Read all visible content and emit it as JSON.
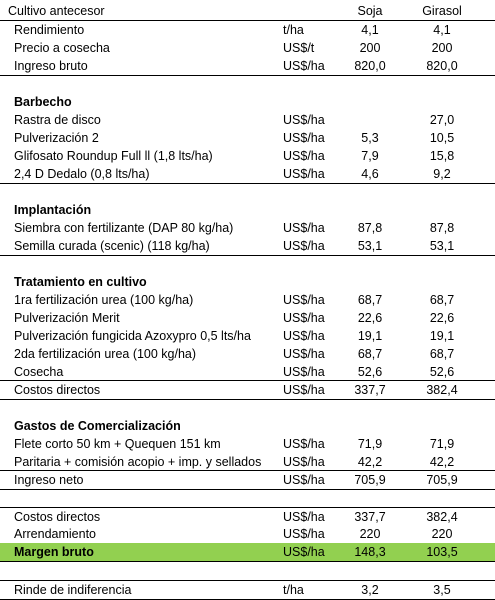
{
  "header": {
    "label": "Cultivo antecesor",
    "unit": "",
    "soja": "Soja",
    "girasol": "Girasol"
  },
  "rows": [
    {
      "label": "Rendimiento",
      "unit": "t/ha",
      "soja": "4,1",
      "girasol": "4,1"
    },
    {
      "label": "Precio a cosecha",
      "unit": "US$/t",
      "soja": "200",
      "girasol": "200"
    },
    {
      "label": "Ingreso bruto",
      "unit": "US$/ha",
      "soja": "820,0",
      "girasol": "820,0"
    },
    {
      "label": "Barbecho",
      "unit": "",
      "soja": "",
      "girasol": ""
    },
    {
      "label": "Rastra de disco",
      "unit": "US$/ha",
      "soja": "",
      "girasol": "27,0"
    },
    {
      "label": "Pulverización 2",
      "unit": "US$/ha",
      "soja": "5,3",
      "girasol": "10,5"
    },
    {
      "label": "Glifosato Roundup Full ll (1,8 lts/ha)",
      "unit": "US$/ha",
      "soja": "7,9",
      "girasol": "15,8"
    },
    {
      "label": "2,4 D Dedalo (0,8 lts/ha)",
      "unit": "US$/ha",
      "soja": "4,6",
      "girasol": "9,2"
    },
    {
      "label": "Implantación",
      "unit": "",
      "soja": "",
      "girasol": ""
    },
    {
      "label": "Siembra con fertilizante (DAP 80 kg/ha)",
      "unit": "US$/ha",
      "soja": "87,8",
      "girasol": "87,8"
    },
    {
      "label": "Semilla curada (scenic) (118 kg/ha)",
      "unit": "US$/ha",
      "soja": "53,1",
      "girasol": "53,1"
    },
    {
      "label": "Tratamiento en cultivo",
      "unit": "",
      "soja": "",
      "girasol": ""
    },
    {
      "label": "1ra fertilización urea (100 kg/ha)",
      "unit": "US$/ha",
      "soja": "68,7",
      "girasol": "68,7"
    },
    {
      "label": "Pulverización Merit",
      "unit": "US$/ha",
      "soja": "22,6",
      "girasol": "22,6"
    },
    {
      "label": "Pulverización fungicida Azoxypro 0,5 lts/ha",
      "unit": "US$/ha",
      "soja": "19,1",
      "girasol": "19,1"
    },
    {
      "label": "2da fertilización urea (100 kg/ha)",
      "unit": "US$/ha",
      "soja": "68,7",
      "girasol": "68,7"
    },
    {
      "label": "Cosecha",
      "unit": "US$/ha",
      "soja": "52,6",
      "girasol": "52,6"
    },
    {
      "label": "Costos directos",
      "unit": "US$/ha",
      "soja": "337,7",
      "girasol": "382,4"
    },
    {
      "label": "Gastos de Comercialización",
      "unit": "",
      "soja": "",
      "girasol": ""
    },
    {
      "label": "Flete corto 50 km + Quequen 151 km",
      "unit": "US$/ha",
      "soja": "71,9",
      "girasol": "71,9"
    },
    {
      "label": "Paritaria + comisión acopio + imp. y sellados",
      "unit": "US$/ha",
      "soja": "42,2",
      "girasol": "42,2"
    },
    {
      "label": "Ingreso neto",
      "unit": "US$/ha",
      "soja": "705,9",
      "girasol": "705,9"
    },
    {
      "label": "Costos directos",
      "unit": "US$/ha",
      "soja": "337,7",
      "girasol": "382,4"
    },
    {
      "label": "Arrendamiento",
      "unit": "US$/ha",
      "soja": "220",
      "girasol": "220"
    },
    {
      "label": "Margen bruto",
      "unit": "US$/ha",
      "soja": "148,3",
      "girasol": "103,5"
    },
    {
      "label": "Rinde de indiferencia",
      "unit": "t/ha",
      "soja": "3,2",
      "girasol": "3,5"
    }
  ],
  "colors": {
    "highlight": "#92d050"
  }
}
